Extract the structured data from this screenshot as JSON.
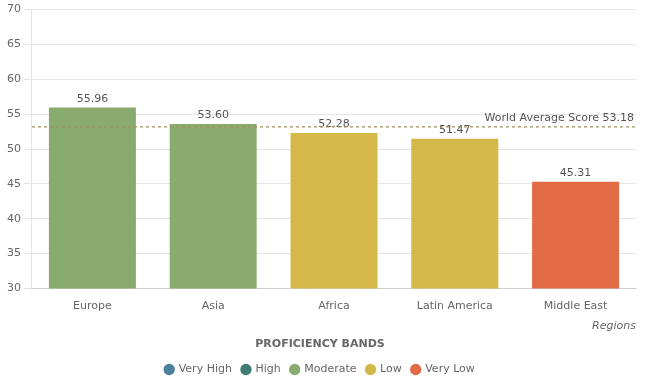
{
  "chart_data": {
    "type": "bar",
    "categories": [
      "Europe",
      "Asia",
      "Africa",
      "Latin America",
      "Middle East"
    ],
    "values": [
      55.96,
      53.6,
      52.28,
      51.47,
      45.31
    ],
    "value_labels": [
      "55.96",
      "53.60",
      "52.28",
      "51.47",
      "45.31"
    ],
    "data_labels": true,
    "colors": [
      "#8aab6e",
      "#8aab6e",
      "#d4b84a",
      "#d4b84a",
      "#e06b45"
    ],
    "ylim": [
      30,
      70
    ],
    "yticks": [
      30,
      35,
      40,
      45,
      50,
      55,
      60,
      65,
      70
    ],
    "grid": true,
    "xlabel": "Regions",
    "annotations": [
      {
        "text": "World Average Score 53.18",
        "y": 53.18
      }
    ],
    "legend": "bottom",
    "legend_title": "PROFICIENCY BANDS",
    "legend_items": [
      {
        "label": "Very High",
        "color": "#4a7f9e"
      },
      {
        "label": "High",
        "color": "#3d7d72"
      },
      {
        "label": "Moderate",
        "color": "#8aab6e"
      },
      {
        "label": "Low",
        "color": "#d4b84a"
      },
      {
        "label": "Very Low",
        "color": "#e06b45"
      }
    ]
  }
}
